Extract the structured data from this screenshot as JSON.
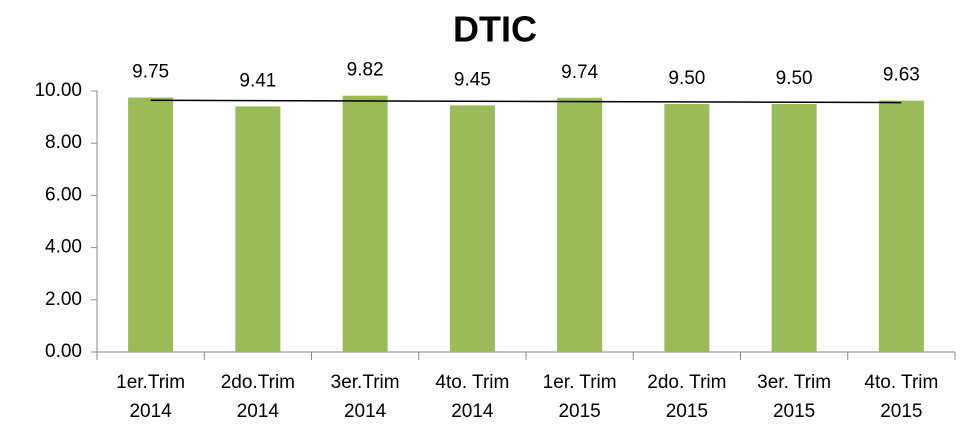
{
  "chart_data": {
    "type": "bar",
    "title": "DTIC",
    "categories": [
      [
        "1er.Trim",
        "2014"
      ],
      [
        "2do.Trim",
        "2014"
      ],
      [
        "3er.Trim",
        "2014"
      ],
      [
        "4to. Trim",
        "2014"
      ],
      [
        "1er. Trim",
        "2015"
      ],
      [
        "2do. Trim",
        "2015"
      ],
      [
        "3er. Trim",
        "2015"
      ],
      [
        "4to. Trim",
        "2015"
      ]
    ],
    "values": [
      9.75,
      9.41,
      9.82,
      9.45,
      9.74,
      9.5,
      9.5,
      9.63
    ],
    "value_labels": [
      "9.75",
      "9.41",
      "9.82",
      "9.45",
      "9.74",
      "9.50",
      "9.50",
      "9.63"
    ],
    "color": "#9bbb59",
    "ylim": [
      0,
      10
    ],
    "yticks": [
      {
        "value": 0,
        "label": "0.00"
      },
      {
        "value": 2,
        "label": "2.00"
      },
      {
        "value": 4,
        "label": "4.00"
      },
      {
        "value": 6,
        "label": "6.00"
      },
      {
        "value": 8,
        "label": "8.00"
      },
      {
        "value": 10,
        "label": "10.00"
      }
    ],
    "grid": false,
    "trendline": true
  }
}
